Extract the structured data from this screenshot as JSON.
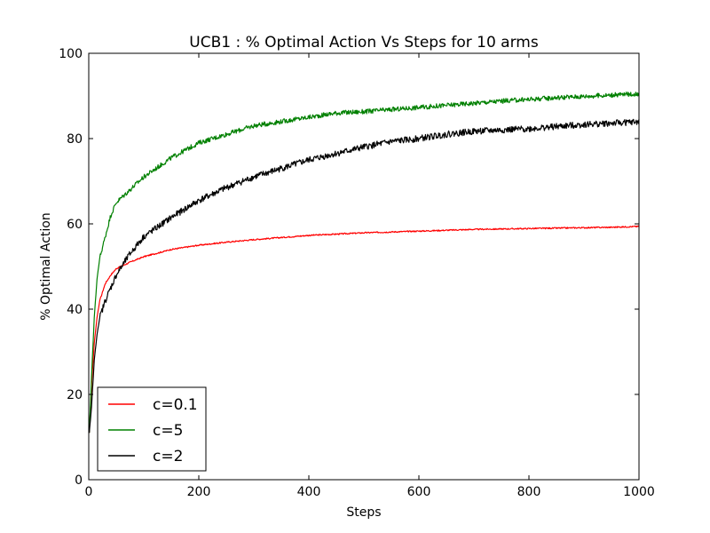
{
  "chart_data": {
    "type": "line",
    "title": "UCB1 : % Optimal Action Vs Steps for 10 arms",
    "xlabel": "Steps",
    "ylabel": "% Optimal Action",
    "xlim": [
      0,
      1000
    ],
    "ylim": [
      0,
      100
    ],
    "xticks": [
      0,
      200,
      400,
      600,
      800,
      1000
    ],
    "yticks": [
      0,
      20,
      40,
      60,
      80,
      100
    ],
    "grid": false,
    "legend_position": "lower-left",
    "series": [
      {
        "name": "c=0.1",
        "color": "#ff0000",
        "points": [
          [
            1,
            11
          ],
          [
            5,
            22
          ],
          [
            10,
            32
          ],
          [
            15,
            38
          ],
          [
            20,
            42
          ],
          [
            30,
            46
          ],
          [
            40,
            48
          ],
          [
            50,
            49.5
          ],
          [
            75,
            51
          ],
          [
            100,
            52.3
          ],
          [
            150,
            54
          ],
          [
            200,
            55
          ],
          [
            250,
            55.7
          ],
          [
            300,
            56.3
          ],
          [
            350,
            56.8
          ],
          [
            400,
            57.3
          ],
          [
            450,
            57.6
          ],
          [
            500,
            57.9
          ],
          [
            550,
            58.1
          ],
          [
            600,
            58.3
          ],
          [
            650,
            58.5
          ],
          [
            700,
            58.7
          ],
          [
            750,
            58.8
          ],
          [
            800,
            58.9
          ],
          [
            850,
            59
          ],
          [
            900,
            59.1
          ],
          [
            950,
            59.2
          ],
          [
            1000,
            59.4
          ]
        ]
      },
      {
        "name": "c=5",
        "color": "#008000",
        "points": [
          [
            1,
            11
          ],
          [
            5,
            24
          ],
          [
            10,
            38
          ],
          [
            15,
            47
          ],
          [
            20,
            52
          ],
          [
            30,
            57
          ],
          [
            40,
            62
          ],
          [
            50,
            65
          ],
          [
            75,
            68
          ],
          [
            100,
            71
          ],
          [
            150,
            75.5
          ],
          [
            200,
            79
          ],
          [
            250,
            81
          ],
          [
            300,
            83
          ],
          [
            350,
            84
          ],
          [
            400,
            85
          ],
          [
            450,
            86
          ],
          [
            500,
            86.3
          ],
          [
            550,
            86.8
          ],
          [
            600,
            87.3
          ],
          [
            650,
            87.8
          ],
          [
            700,
            88.3
          ],
          [
            750,
            88.8
          ],
          [
            800,
            89.2
          ],
          [
            850,
            89.6
          ],
          [
            900,
            89.9
          ],
          [
            950,
            90.2
          ],
          [
            1000,
            90.5
          ]
        ]
      },
      {
        "name": "c=2",
        "color": "#000000",
        "points": [
          [
            1,
            11
          ],
          [
            5,
            17
          ],
          [
            10,
            28
          ],
          [
            15,
            34
          ],
          [
            20,
            38
          ],
          [
            30,
            42
          ],
          [
            40,
            45
          ],
          [
            50,
            48
          ],
          [
            75,
            53
          ],
          [
            100,
            57
          ],
          [
            150,
            61.5
          ],
          [
            200,
            65.5
          ],
          [
            250,
            68.5
          ],
          [
            300,
            71
          ],
          [
            350,
            73
          ],
          [
            400,
            75
          ],
          [
            450,
            76.5
          ],
          [
            500,
            78
          ],
          [
            550,
            79.3
          ],
          [
            600,
            80
          ],
          [
            650,
            81
          ],
          [
            700,
            81.7
          ],
          [
            750,
            82
          ],
          [
            800,
            82.3
          ],
          [
            850,
            82.8
          ],
          [
            900,
            83.3
          ],
          [
            950,
            83.6
          ],
          [
            1000,
            83.9
          ]
        ]
      }
    ]
  }
}
